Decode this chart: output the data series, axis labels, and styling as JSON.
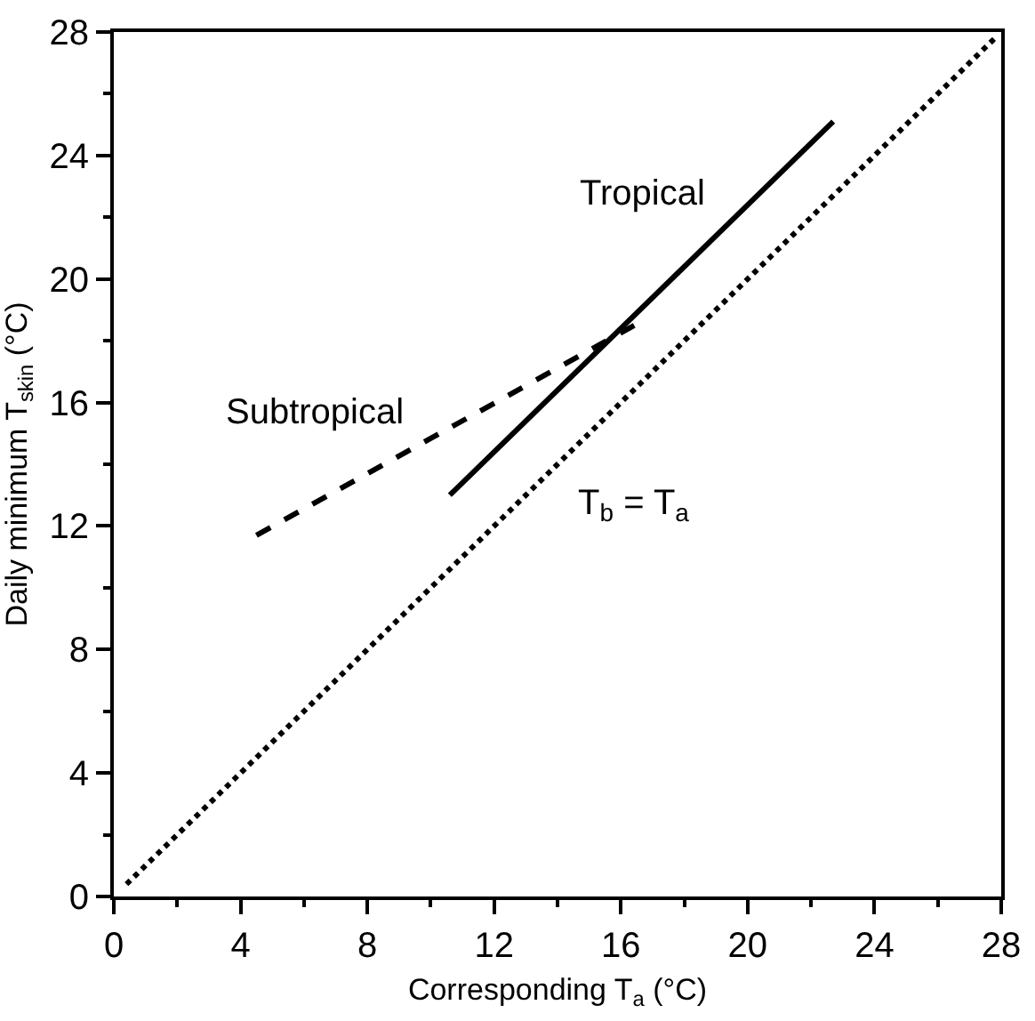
{
  "chart_data": {
    "type": "line",
    "xlabel": "Corresponding T$_{a}$ (°C)",
    "ylabel": "Daily minimum T$_{skin}$ (°C)",
    "xlim": [
      0,
      28
    ],
    "ylim": [
      0,
      28
    ],
    "xticks": [
      0,
      {
        "value": 2,
        "label": null
      },
      4,
      {
        "value": 6,
        "label": null
      },
      8,
      {
        "value": 10,
        "label": null
      },
      12,
      {
        "value": 14,
        "label": null
      },
      16,
      {
        "value": 18,
        "label": null
      },
      20,
      {
        "value": 22,
        "label": null
      },
      24,
      {
        "value": 26,
        "label": null
      },
      28
    ],
    "yticks": [
      0,
      {
        "value": 2,
        "label": null
      },
      4,
      {
        "value": 6,
        "label": null
      },
      8,
      {
        "value": 10,
        "label": null
      },
      12,
      {
        "value": 14,
        "label": null
      },
      16,
      {
        "value": 18,
        "label": null
      },
      20,
      {
        "value": 22,
        "label": null
      },
      24,
      {
        "value": 26,
        "label": null
      },
      28
    ],
    "grid": false,
    "legend": false,
    "marker": "none",
    "series": [
      {
        "name": "Tropical",
        "color": "#000000",
        "line_style": "solid",
        "x": [
          10.6,
          22.7
        ],
        "values": [
          13.0,
          25.1
        ]
      },
      {
        "name": "Subtropical",
        "color": "#000000",
        "line_style": "dashed",
        "x": [
          4.5,
          16.6
        ],
        "values": [
          11.7,
          18.6
        ]
      },
      {
        "name": "T$_{b}$ = T$_{a}$",
        "color": "#000000",
        "line_style": "dotted",
        "x": [
          0.4,
          27.8
        ],
        "values": [
          0.4,
          27.8
        ]
      }
    ]
  }
}
